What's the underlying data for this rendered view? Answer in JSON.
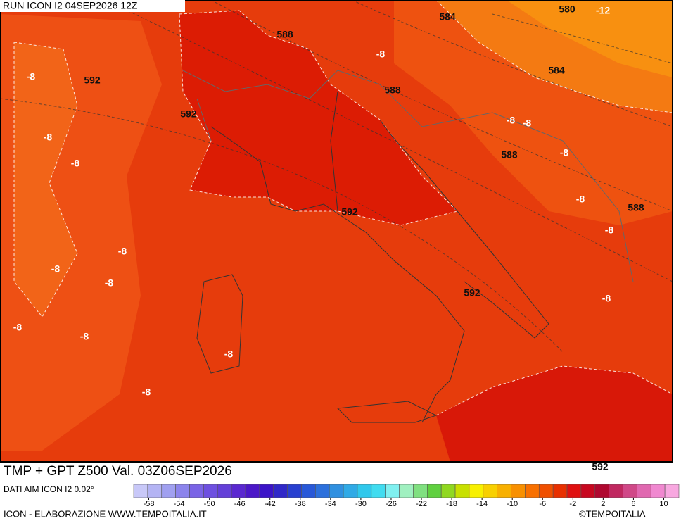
{
  "header": {
    "run": "RUN ICON I2 04SEP2026 12Z"
  },
  "contour_labels": [
    584,
    580,
    -12,
    588,
    -8,
    584,
    -8,
    592,
    588,
    592,
    -8,
    -8,
    -8,
    588,
    -8,
    -8,
    -8,
    588,
    592,
    -8,
    -8,
    -8,
    -8,
    592,
    -8,
    -8,
    -8,
    -8,
    -8,
    592
  ],
  "footer": {
    "title": "TMP + GPT Z500 Val. 03Z06SEP2026",
    "source": "DATI AIM ICON I2 0.02°",
    "credit": "ICON - ELABORAZIONE WWW.TEMPOITALIA.IT",
    "brand": "©TEMPOITALIA"
  },
  "colorbar": {
    "lim": [
      -60,
      12
    ],
    "ticks": [
      -58,
      -54,
      -50,
      -46,
      -42,
      -38,
      -34,
      -30,
      -26,
      -22,
      -18,
      -14,
      -10,
      -6,
      -2,
      2,
      6,
      10
    ],
    "colors": [
      "#c8c8f8",
      "#b4b4f4",
      "#a0a0f0",
      "#8c84ec",
      "#7a64e6",
      "#6e50e0",
      "#6440d8",
      "#5a28d0",
      "#4c18c8",
      "#3c14c8",
      "#3028c8",
      "#2840d0",
      "#2858d8",
      "#2c70dc",
      "#3090e0",
      "#30aae6",
      "#30c8ec",
      "#40dcf0",
      "#80f0f0",
      "#a0f0c0",
      "#80e080",
      "#60d040",
      "#90d820",
      "#c8e000",
      "#f8f000",
      "#f8d000",
      "#f8b000",
      "#f89000",
      "#f87000",
      "#f05000",
      "#e83000",
      "#e01010",
      "#c80820",
      "#b00830",
      "#c02860",
      "#d04888",
      "#e068b0",
      "#f088d0",
      "#f8a8e0"
    ]
  }
}
